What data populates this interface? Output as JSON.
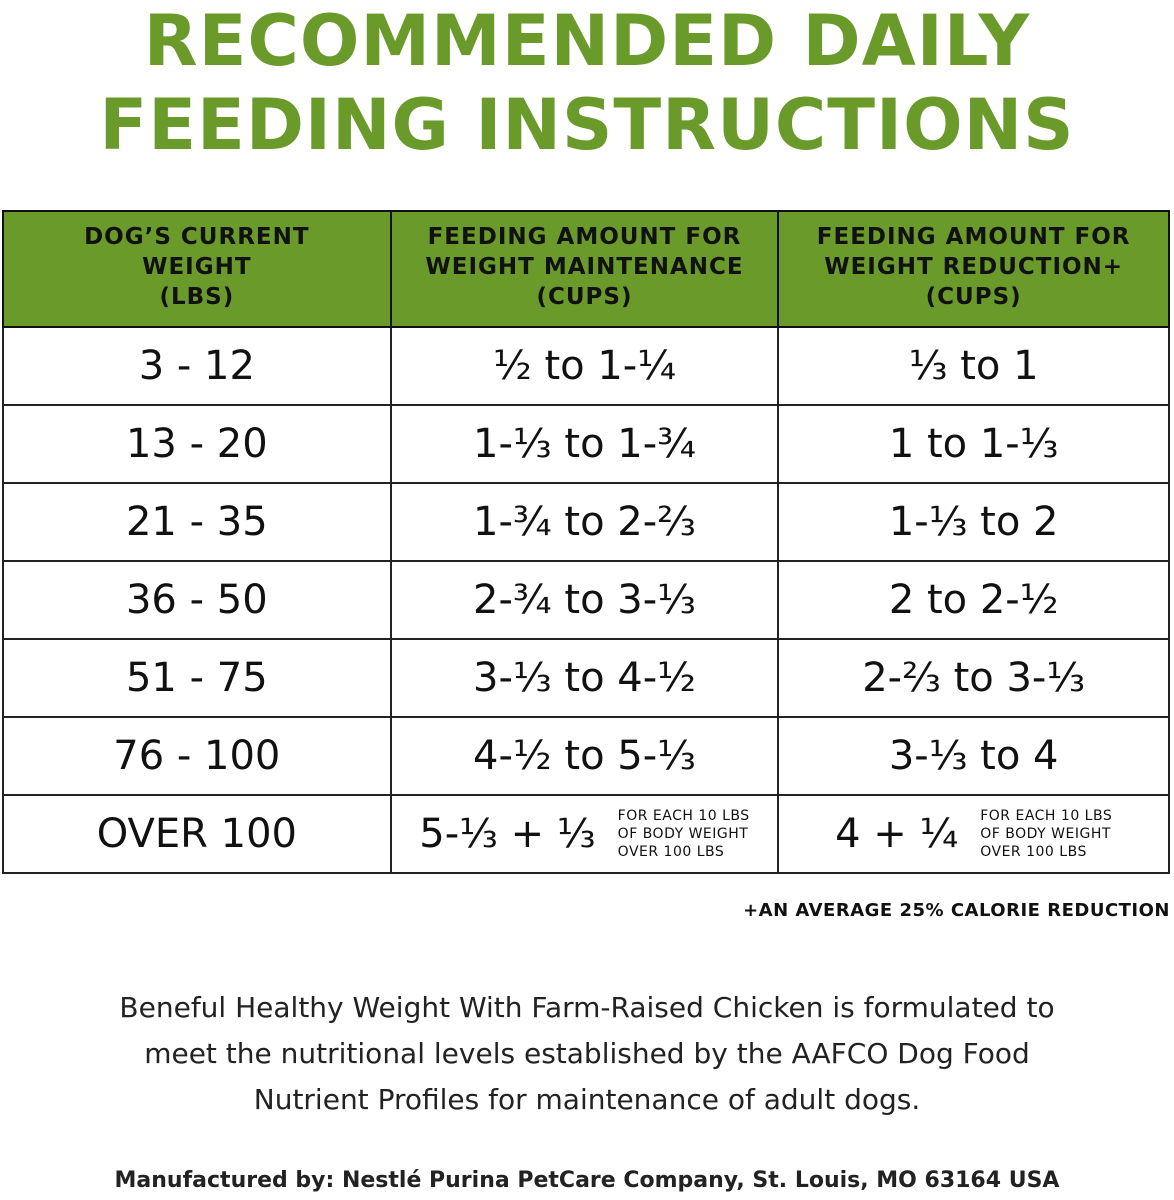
{
  "title": {
    "line1": "RECOMMENDED DAILY",
    "line2": "FEEDING INSTRUCTIONS"
  },
  "table": {
    "headers": [
      [
        "DOG’S CURRENT",
        "WEIGHT",
        "(LBS)"
      ],
      [
        "FEEDING AMOUNT FOR",
        "WEIGHT MAINTENANCE",
        "(CUPS)"
      ],
      [
        "FEEDING AMOUNT FOR",
        "WEIGHT REDUCTION+",
        "(CUPS)"
      ]
    ],
    "rows": [
      [
        "3 - 12",
        "½ to 1-¼",
        "⅓ to 1"
      ],
      [
        "13 - 20",
        "1-⅓ to 1-¾",
        "1 to 1-⅓"
      ],
      [
        "21 - 35",
        "1-¾ to 2-⅔",
        "1-⅓ to 2"
      ],
      [
        "36 - 50",
        "2-¾ to 3-⅓",
        "2 to 2-½"
      ],
      [
        "51 - 75",
        "3-⅓ to 4-½",
        "2-⅔ to 3-⅓"
      ],
      [
        "76 - 100",
        "4-½ to 5-⅓",
        "3-⅓ to 4"
      ]
    ],
    "last_row": {
      "weight": "OVER 100",
      "maintenance": "5-⅓ + ⅓",
      "reduction": "4 + ¼",
      "note": [
        "FOR EACH 10 LBS",
        "OF BODY WEIGHT",
        "OVER 100 LBS"
      ]
    }
  },
  "footnote": "+AN AVERAGE  25% CALORIE REDUCTION",
  "paragraph": [
    "Beneful Healthy Weight With Farm-Raised Chicken is formulated to",
    "meet the nutritional levels established by the AAFCO Dog Food",
    "Nutrient Profiles for maintenance of adult dogs."
  ],
  "manufacturer": "Manufactured by: Nestlé Purina PetCare Company, St. Louis, MO 63164 USA",
  "colors": {
    "accent": "#6a9a2a"
  }
}
